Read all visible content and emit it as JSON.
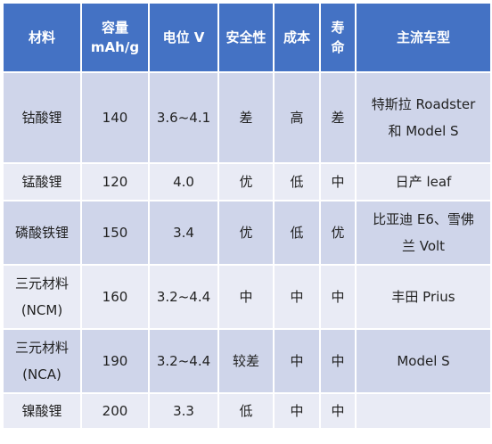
{
  "table": {
    "headers": [
      "材料",
      "容量 mAh/g",
      "电位 V",
      "安全性",
      "成本",
      "寿命",
      "主流车型"
    ],
    "rows": [
      [
        "钴酸锂",
        "140",
        "3.6~4.1",
        "差",
        "高",
        "差",
        "特斯拉 Roadster和 Model S"
      ],
      [
        "锰酸锂",
        "120",
        "4.0",
        "优",
        "低",
        "中",
        "日产 leaf"
      ],
      [
        "磷酸铁锂",
        "150",
        "3.4",
        "优",
        "低",
        "优",
        "比亚迪 E6、雪佛兰 Volt"
      ],
      [
        "三元材料 (NCM)",
        "160",
        "3.2~4.4",
        "中",
        "中",
        "中",
        "丰田 Prius"
      ],
      [
        "三元材料 (NCA)",
        "190",
        "3.2~4.4",
        "较差",
        "中",
        "中",
        "Model S"
      ],
      [
        "镍酸锂",
        "200",
        "3.3",
        "低",
        "中",
        "中",
        ""
      ]
    ]
  },
  "colors": {
    "header_bg": "#4472c4",
    "row_odd_bg": "#cfd5ea",
    "row_even_bg": "#e9ebf5"
  }
}
